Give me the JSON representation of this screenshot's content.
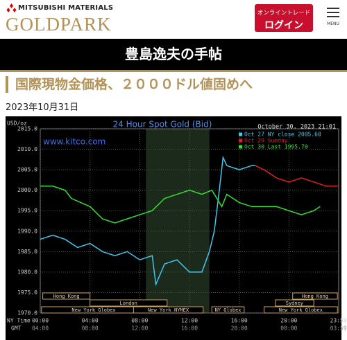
{
  "header": {
    "brand": "MITSUBISHI MATERIALS",
    "logo": "GOLDPARK",
    "login_small": "オンライントレード",
    "login_big": "ログイン",
    "menu": "MENU"
  },
  "column_title": "豊島逸夫の手帖",
  "article": {
    "title": "国際現物金価格、２０００ドル値固めへ",
    "date": "2023年10月31日"
  },
  "chart_data": {
    "type": "line",
    "title": "24 Hour Spot Gold (Bid)",
    "y_label": "USD/oz",
    "timestamp": "October 30, 2023 21:01",
    "source": "www.kitco.com",
    "x_row_label": "NY Time",
    "x2_row_label": "GMT",
    "xlim": [
      0,
      24
    ],
    "xticks": [
      {
        "value": 0,
        "label": "00:00"
      },
      {
        "value": 4,
        "label": "04:00"
      },
      {
        "value": 8,
        "label": "08:00"
      },
      {
        "value": 12,
        "label": "12:00"
      },
      {
        "value": 16,
        "label": "16:00"
      },
      {
        "value": 20,
        "label": "20:00"
      },
      {
        "value": 23.98,
        "label": "23:59"
      }
    ],
    "x2ticks": [
      {
        "value": 0,
        "label": "04:00"
      },
      {
        "value": 4,
        "label": "08:00"
      },
      {
        "value": 8,
        "label": "12:00"
      },
      {
        "value": 12,
        "label": "16:00"
      },
      {
        "value": 16,
        "label": "20:00"
      },
      {
        "value": 20,
        "label": "00:00"
      },
      {
        "value": 23.98,
        "label": "03:59"
      }
    ],
    "ylim": [
      1970,
      2015
    ],
    "yticks": [
      {
        "value": 1970,
        "label": "1970.0"
      },
      {
        "value": 1975,
        "label": "1975.0"
      },
      {
        "value": 1980,
        "label": "1980.0"
      },
      {
        "value": 1985,
        "label": "1985.0"
      },
      {
        "value": 1990,
        "label": "1990.0"
      },
      {
        "value": 1995,
        "label": "1995.0"
      },
      {
        "value": 2000,
        "label": "2000.0"
      },
      {
        "value": 2005,
        "label": "2005.0"
      },
      {
        "value": 2010,
        "label": "2010.0"
      },
      {
        "value": 2015,
        "label": "2015.0"
      }
    ],
    "grid": true,
    "highlight": [
      8.5,
      13.6
    ],
    "series": [
      {
        "name": "Oct 27 NY close 2005.60",
        "color": "#3fc8f0",
        "x": [
          0,
          1,
          2,
          3,
          4,
          5,
          6,
          7,
          8,
          9,
          9.3,
          10,
          11,
          12,
          13,
          13.6,
          14,
          14.4,
          14.7,
          15,
          16,
          17,
          17.3
        ],
        "values": [
          1988,
          1989,
          1988,
          1986,
          1987,
          1985,
          1984,
          1985,
          1983,
          1984,
          1977,
          1982,
          1983,
          1980,
          1980,
          1985,
          1990,
          2000,
          2008,
          2006,
          2005,
          2006,
          2006
        ]
      },
      {
        "name": "Oct 29 Sunday",
        "color": "#e02020",
        "x": [
          17.3,
          18,
          19,
          20,
          21,
          22,
          23,
          24
        ],
        "values": [
          2006,
          2005,
          2003,
          2002,
          2003,
          2002,
          2001,
          2001
        ]
      },
      {
        "name": "Oct 30 Last 1995.70",
        "color": "#30e030",
        "x": [
          0,
          1,
          2,
          2.5,
          4,
          5,
          6,
          7,
          8,
          9,
          10,
          11,
          12,
          13,
          13.8,
          14.6,
          15,
          16,
          17,
          19,
          20,
          21,
          22,
          22.5
        ],
        "values": [
          2001,
          2001,
          2000,
          1998,
          1996,
          1993,
          1992,
          1993,
          1994,
          1995,
          1998,
          1999,
          2000,
          1999,
          2000,
          1996,
          1999,
          1997,
          1996,
          1996,
          1995,
          1994,
          1995,
          1996
        ]
      }
    ],
    "sessions": [
      {
        "name": "Hong Kong",
        "start": 0.2,
        "end": 4
      },
      {
        "name": "London",
        "start": 4,
        "end": 10.2
      },
      {
        "name": "New York Globex",
        "start": 0.1,
        "end": 8.5
      },
      {
        "name": "New York NYMEX",
        "start": 7.5,
        "end": 13.1
      },
      {
        "name": "NY Globex",
        "start": 13.8,
        "end": 16.4
      },
      {
        "name": "Hong Kong",
        "start": 20.3,
        "end": 23.9
      },
      {
        "name": "Sydney",
        "start": 18.9,
        "end": 22
      },
      {
        "name": "New York Globex",
        "start": 18,
        "end": 23.9
      }
    ]
  }
}
